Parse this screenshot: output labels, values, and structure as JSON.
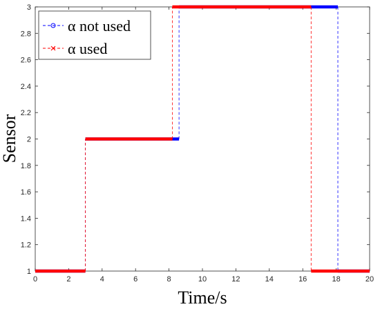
{
  "chart_data": {
    "type": "line",
    "xlabel": "Time/s",
    "ylabel": "Sensor",
    "xlim": [
      0,
      20
    ],
    "ylim": [
      1,
      3
    ],
    "xticks": [
      "0",
      "2",
      "4",
      "6",
      "8",
      "10",
      "12",
      "14",
      "16",
      "18",
      "20"
    ],
    "yticks": [
      "1",
      "1.2",
      "1.4",
      "1.6",
      "1.8",
      "2",
      "2.2",
      "2.4",
      "2.6",
      "2.8",
      "3"
    ],
    "grid": false,
    "legend_position": "top-left",
    "series": [
      {
        "name": "α not used",
        "color": "#0000ff",
        "line_style": "dashed",
        "marker": "circle",
        "x": [
          0,
          3.0,
          3.0,
          8.6,
          8.6,
          18.1,
          18.1,
          20
        ],
        "y": [
          1,
          1,
          2,
          2,
          3,
          3,
          1,
          1
        ]
      },
      {
        "name": "α used",
        "color": "#ff0000",
        "line_style": "dashed",
        "marker": "x",
        "x": [
          0,
          3.0,
          3.0,
          8.2,
          8.2,
          16.5,
          16.5,
          20
        ],
        "y": [
          1,
          1,
          2,
          2,
          3,
          3,
          1,
          1
        ]
      }
    ]
  }
}
